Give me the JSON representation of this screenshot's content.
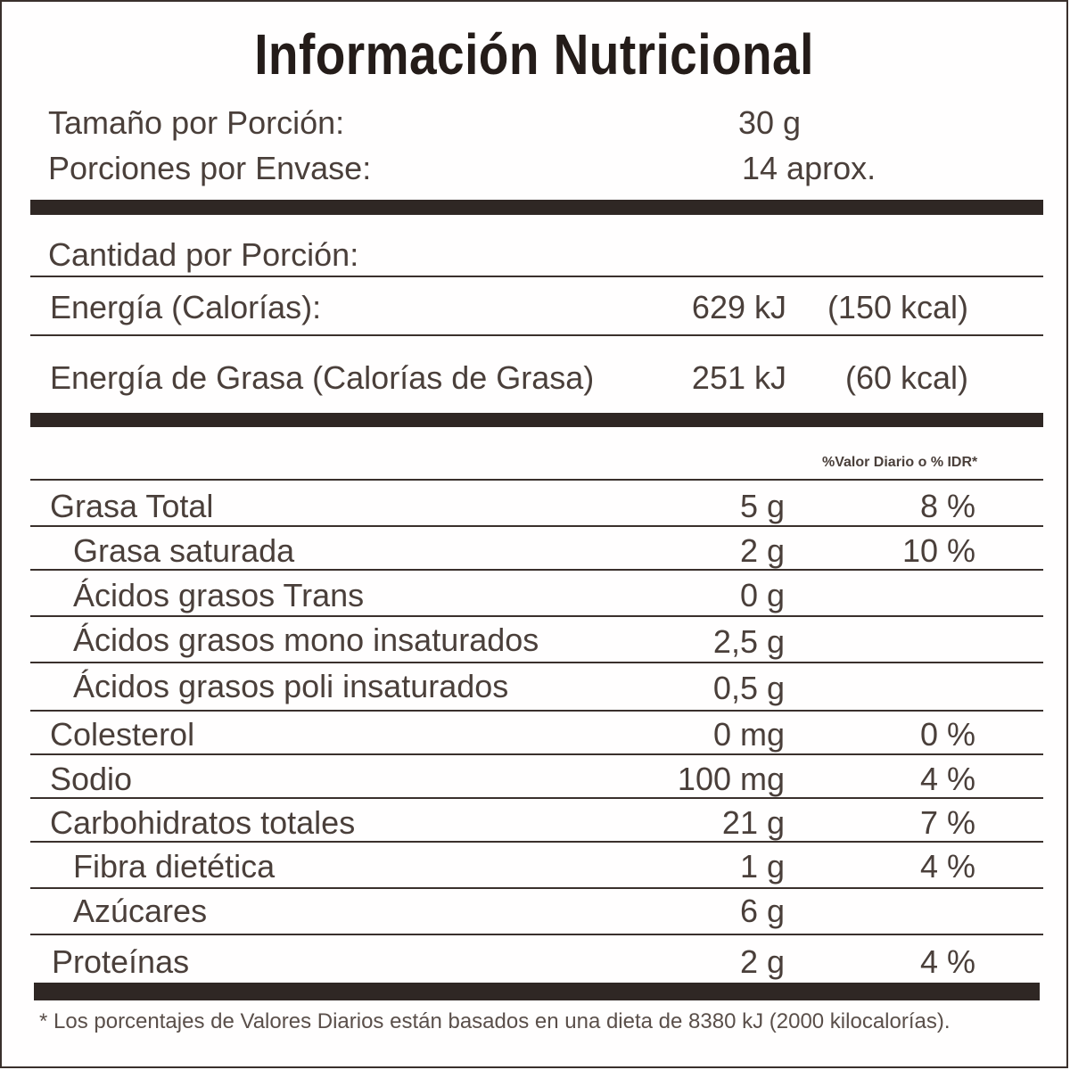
{
  "title": "Información Nutricional",
  "serving": {
    "size_label": "Tamaño por Porción:",
    "size_value": "30 g",
    "per_container_label": "Porciones por Envase:",
    "per_container_value": "14 aprox."
  },
  "amount_per_serving": "Cantidad por Porción:",
  "energy": {
    "label": "Energía (Calorías):",
    "kj": "629 kJ",
    "kcal": "(150 kcal)"
  },
  "fat_energy": {
    "label": "Energía de Grasa (Calorías de Grasa)",
    "kj": "251 kJ",
    "kcal": "(60 kcal)"
  },
  "dv_header": "%Valor Diario o % IDR*",
  "nutrients": [
    {
      "name": "Grasa Total",
      "amount": "5 g",
      "dv": "8 %"
    },
    {
      "name": "Grasa saturada",
      "amount": "2 g",
      "dv": "10 %"
    },
    {
      "name": "Ácidos grasos Trans",
      "amount": "0 g",
      "dv": ""
    },
    {
      "name": "Ácidos grasos mono insaturados",
      "amount": "2,5 g",
      "dv": ""
    },
    {
      "name": "Ácidos grasos poli insaturados",
      "amount": "0,5 g",
      "dv": ""
    },
    {
      "name": "Colesterol",
      "amount": "0 mg",
      "dv": "0 %"
    },
    {
      "name": "Sodio",
      "amount": "100 mg",
      "dv": "4 %"
    },
    {
      "name": "Carbohidratos totales",
      "amount": "21 g",
      "dv": "7 %"
    },
    {
      "name": "Fibra dietética",
      "amount": "1 g",
      "dv": "4 %"
    },
    {
      "name": "Azúcares",
      "amount": "6 g",
      "dv": ""
    },
    {
      "name": "Proteínas",
      "amount": "2 g",
      "dv": "4 %"
    }
  ],
  "footnote": "* Los porcentajes de Valores Diarios están basados en una dieta de 8380 kJ (2000 kilocalorías)."
}
